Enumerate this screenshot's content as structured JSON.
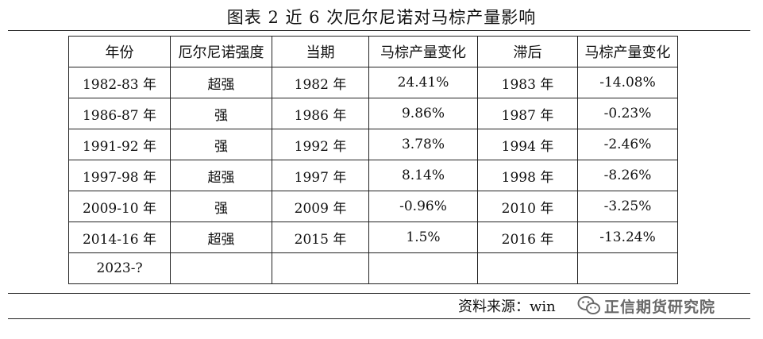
{
  "title": "图表 2  近 6 次厄尔尼诺对马棕产量影响",
  "table": {
    "headers": [
      "年份",
      "厄尔尼诺强度",
      "当期",
      "马棕产量变化",
      "滞后",
      "马棕产量变化"
    ],
    "rows": [
      [
        "1982-83 年",
        "超强",
        "1982 年",
        "24.41%",
        "1983 年",
        "-14.08%"
      ],
      [
        "1986-87 年",
        "强",
        "1986 年",
        "9.86%",
        "1987 年",
        "-0.23%"
      ],
      [
        "1991-92 年",
        "强",
        "1992 年",
        "3.78%",
        "1994 年",
        "-2.46%"
      ],
      [
        "1997-98 年",
        "超强",
        "1997 年",
        "8.14%",
        "1998 年",
        "-8.26%"
      ],
      [
        "2009-10 年",
        "强",
        "2009 年",
        "-0.96%",
        "2010 年",
        "-3.25%"
      ],
      [
        "2014-16 年",
        "超强",
        "2015 年",
        "1.5%",
        "2016 年",
        "-13.24%"
      ],
      [
        "2023-?",
        "",
        "",
        "",
        "",
        ""
      ]
    ]
  },
  "source": "资料来源：win",
  "watermark": {
    "text": "正信期货研究院",
    "icon": "wechat-logo-icon"
  }
}
